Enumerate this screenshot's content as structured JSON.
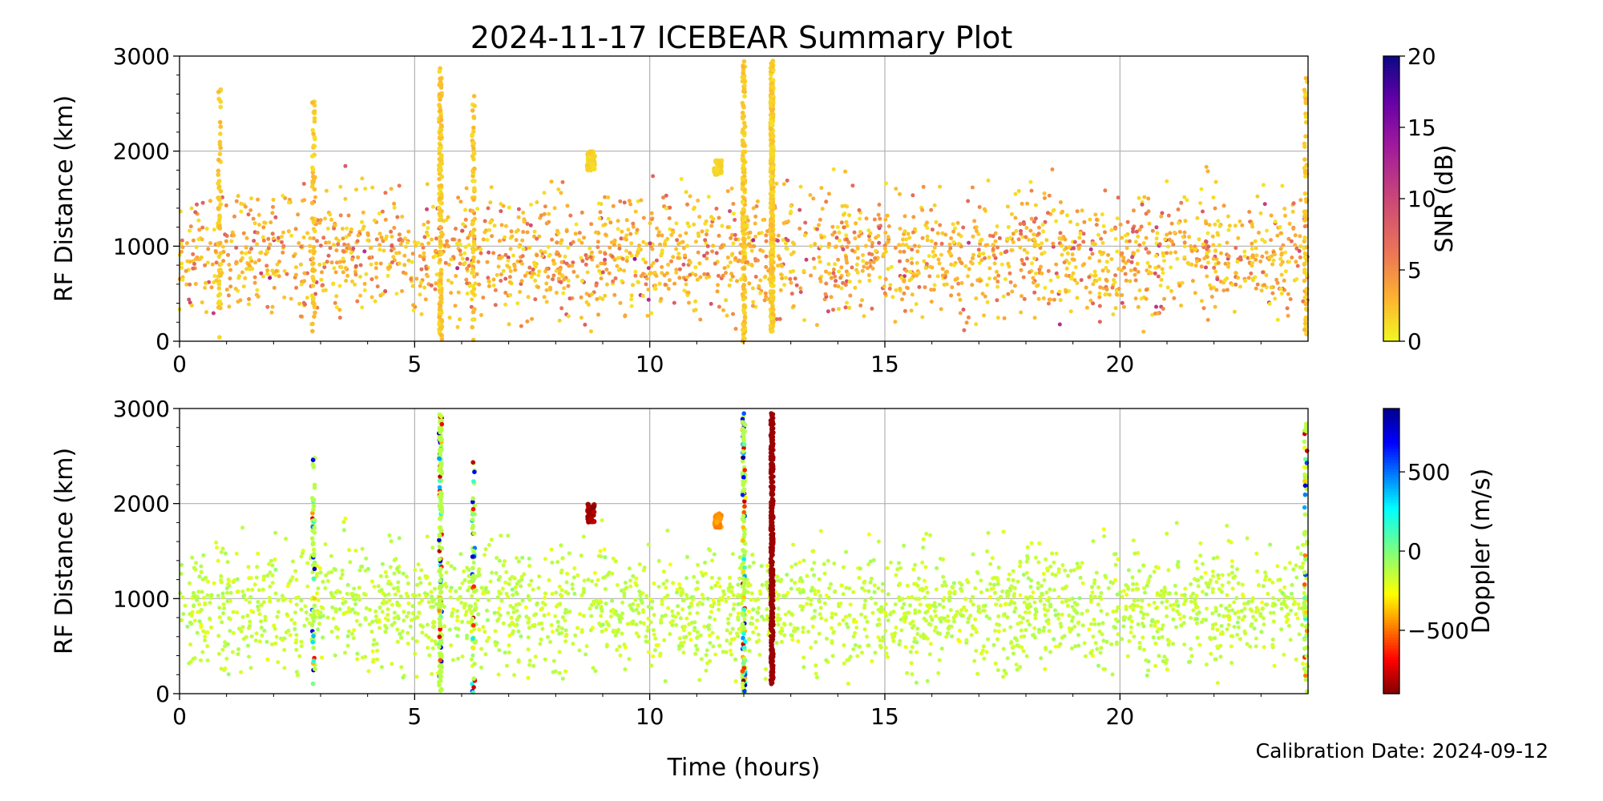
{
  "title": "2024-11-17 ICEBEAR Summary Plot",
  "calibration": "Calibration Date: 2024-09-12",
  "chart_data": [
    {
      "type": "scatter",
      "xlabel": "Time (hours)",
      "ylabel": "RF Distance (km)",
      "xlim": [
        0,
        24
      ],
      "ylim": [
        0,
        3000
      ],
      "xticks": [
        "0",
        "5",
        "10",
        "15",
        "20"
      ],
      "yticks": [
        "0",
        "1000",
        "2000",
        "3000"
      ],
      "grid": true,
      "colorbar": {
        "label": "SNR (dB)",
        "range": [
          0,
          20
        ],
        "ticks": [
          "0",
          "5",
          "10",
          "15",
          "20"
        ],
        "colormap": "plasma_r"
      },
      "background_scatter": {
        "x_range": [
          0,
          24
        ],
        "y_range": [
          300,
          1800
        ],
        "y_center": 900,
        "snr_typical": 3
      },
      "vertical_streaks": [
        {
          "x": 5.55,
          "y_range": [
            0,
            2950
          ],
          "snr": 1
        },
        {
          "x": 12.0,
          "y_range": [
            0,
            2950
          ],
          "snr": 1
        },
        {
          "x": 12.6,
          "y_range": [
            100,
            2950
          ],
          "snr": 1
        },
        {
          "x": 2.85,
          "y_range": [
            100,
            2550
          ],
          "snr": 1
        },
        {
          "x": 23.95,
          "y_range": [
            0,
            2900
          ],
          "snr": 1
        },
        {
          "x": 6.25,
          "y_range": [
            0,
            2600
          ],
          "snr": 1
        },
        {
          "x": 0.85,
          "y_range": [
            0,
            2700
          ],
          "snr": 1
        }
      ],
      "clusters": [
        {
          "x": 8.75,
          "y_range": [
            1800,
            2000
          ],
          "snr": 1
        },
        {
          "x": 11.45,
          "y_range": [
            1750,
            1900
          ],
          "snr": 1
        }
      ]
    },
    {
      "type": "scatter",
      "xlabel": "Time (hours)",
      "ylabel": "RF Distance (km)",
      "xlim": [
        0,
        24
      ],
      "ylim": [
        0,
        3000
      ],
      "xticks": [
        "0",
        "5",
        "10",
        "15",
        "20"
      ],
      "yticks": [
        "0",
        "1000",
        "2000",
        "3000"
      ],
      "grid": true,
      "colorbar": {
        "label": "Doppler (m/s)",
        "range": [
          -900,
          900
        ],
        "ticks": [
          "−500",
          "0",
          "500"
        ],
        "tick_values": [
          -500,
          0,
          500
        ],
        "colormap": "jet_r"
      },
      "background_scatter": {
        "x_range": [
          0,
          24
        ],
        "y_range": [
          300,
          1800
        ],
        "y_center": 900,
        "doppler_typical": -100
      },
      "vertical_streaks": [
        {
          "x": 5.55,
          "y_range": [
            0,
            2950
          ],
          "doppler": "mixed"
        },
        {
          "x": 12.0,
          "y_range": [
            0,
            2950
          ],
          "doppler": "mixed"
        },
        {
          "x": 12.6,
          "y_range": [
            100,
            2950
          ],
          "doppler": -850
        },
        {
          "x": 2.85,
          "y_range": [
            100,
            2550
          ],
          "doppler": "mixed"
        },
        {
          "x": 23.95,
          "y_range": [
            0,
            2900
          ],
          "doppler": "mixed"
        },
        {
          "x": 6.25,
          "y_range": [
            0,
            2600
          ],
          "doppler": "mixed"
        }
      ],
      "clusters": [
        {
          "x": 8.75,
          "y_range": [
            1800,
            2000
          ],
          "doppler": -850
        },
        {
          "x": 11.45,
          "y_range": [
            1750,
            1900
          ],
          "doppler": -450
        }
      ]
    }
  ]
}
